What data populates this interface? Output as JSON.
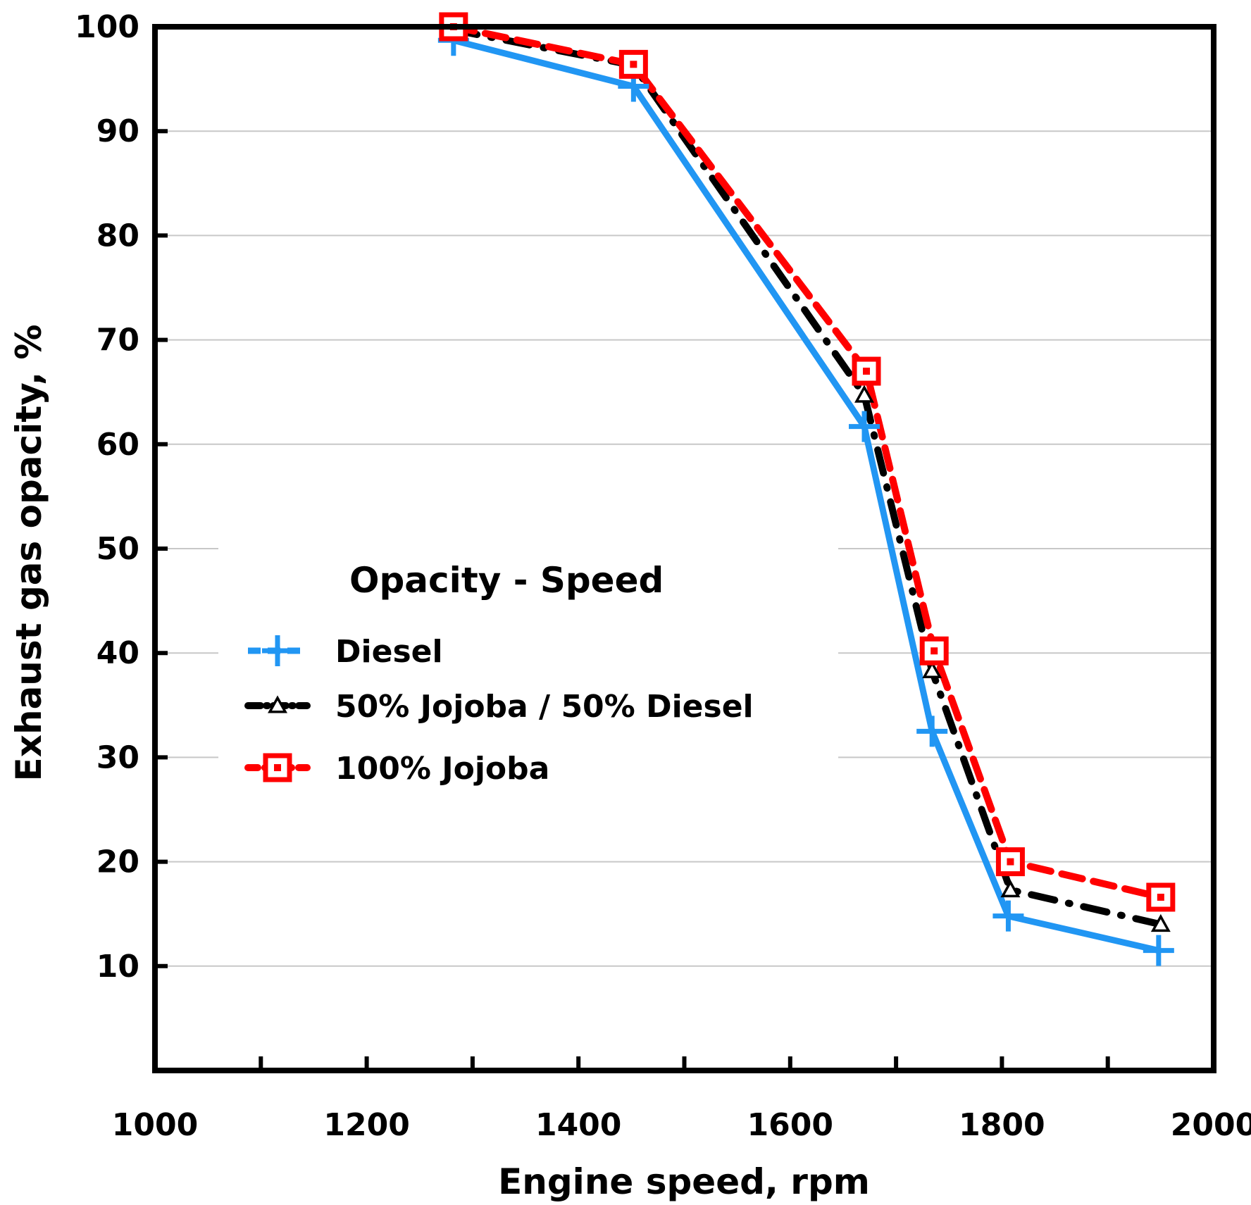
{
  "chart_data": {
    "type": "line",
    "title": "",
    "xlabel": "Engine speed, rpm",
    "ylabel": "Exhaust gas opacity, %",
    "xlim": [
      1000,
      2000
    ],
    "ylim": [
      0,
      100
    ],
    "x_ticks": [
      1000,
      1200,
      1400,
      1600,
      1800,
      2000
    ],
    "x_minor_ticks": [
      1100,
      1300,
      1500,
      1700,
      1900
    ],
    "y_ticks": [
      10,
      20,
      30,
      40,
      50,
      60,
      70,
      80,
      90,
      100
    ],
    "x_tick_labels": [
      "1000",
      "1200",
      "1400",
      "1600",
      "1800",
      "2000"
    ],
    "y_tick_labels": [
      "10",
      "20",
      "30",
      "40",
      "50",
      "60",
      "70",
      "80",
      "90",
      "100"
    ],
    "grid": "horizontal",
    "legend": {
      "title": "Opacity - Speed",
      "position": "center-left"
    },
    "series": [
      {
        "name": "Diesel",
        "color": "#2196F3",
        "line_style": "solid",
        "marker": "plus",
        "x": [
          1282,
          1452,
          1670,
          1734,
          1806,
          1948
        ],
        "values": [
          98.7,
          94.3,
          61.7,
          32.5,
          14.8,
          11.5
        ]
      },
      {
        "name": "50% Jojoba / 50% Diesel",
        "color": "#000000",
        "line_style": "dashdot",
        "marker": "triangle",
        "x": [
          1282,
          1452,
          1670,
          1734,
          1808,
          1950
        ],
        "values": [
          99.7,
          96.3,
          64.7,
          38.3,
          17.3,
          14.0
        ]
      },
      {
        "name": "100% Jojoba",
        "color": "#FF0000",
        "line_style": "dashed",
        "marker": "square",
        "x": [
          1282,
          1452,
          1672,
          1736,
          1808,
          1950
        ],
        "values": [
          100.0,
          96.4,
          67.0,
          40.2,
          20.0,
          16.6
        ]
      }
    ]
  }
}
